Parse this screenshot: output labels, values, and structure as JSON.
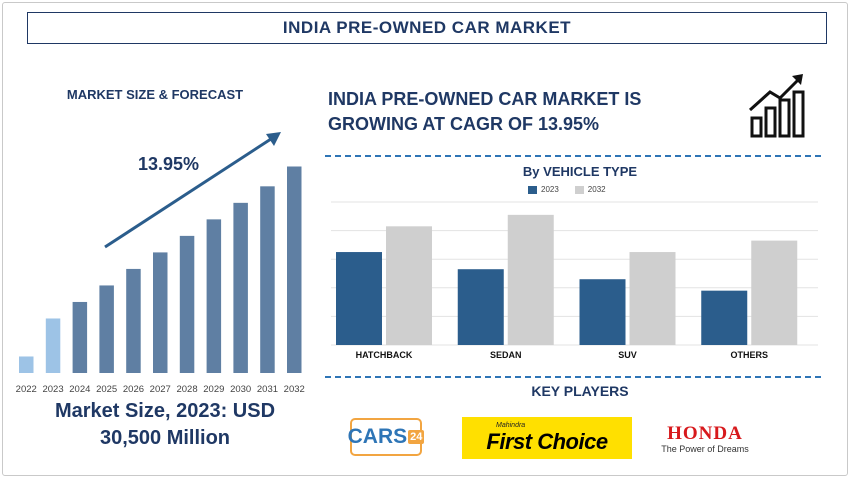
{
  "title": "INDIA PRE-OWNED CAR MARKET",
  "left_heading": "MARKET SIZE & FORECAST",
  "market_size_line1": "Market Size, 2023: USD",
  "market_size_line2": "30,500 Million",
  "growth_line1": "INDIA PRE-OWNED CAR MARKET IS",
  "growth_line2": "GROWING AT CAGR OF 13.95%",
  "key_players_title": "KEY PLAYERS",
  "logos": {
    "cars24_main": "CARS",
    "cars24_num": "24",
    "mahindra_small": "Mahindra",
    "mahindra_big": "First Choice",
    "honda_name": "HONDA",
    "honda_tagline": "The Power of Dreams"
  },
  "icons": {
    "growth": "growth-bar-chart-icon"
  },
  "colors": {
    "navy": "#1f3864",
    "bar_2023": "#2b5d8c",
    "bar_2032": "#cfcfcf",
    "forecast_bar": "#5f7fa3",
    "first_bar": "#9dc3e6"
  },
  "chart_data": [
    {
      "type": "bar",
      "title": "MARKET SIZE & FORECAST",
      "categories": [
        "2022",
        "2023",
        "2024",
        "2025",
        "2026",
        "2027",
        "2028",
        "2029",
        "2030",
        "2031",
        "2032"
      ],
      "values": [
        1,
        3.3,
        4.3,
        5.3,
        6.3,
        7.3,
        8.3,
        9.3,
        10.3,
        11.3,
        12.5
      ],
      "value_unit": "relative",
      "annotation": "13.95%",
      "ylim": [
        0,
        13
      ]
    },
    {
      "type": "bar",
      "title": "By VEHICLE TYPE",
      "categories": [
        "HATCHBACK",
        "SEDAN",
        "SUV",
        "OTHERS"
      ],
      "series": [
        {
          "name": "2023",
          "values": [
            65,
            53,
            46,
            38
          ]
        },
        {
          "name": "2032",
          "values": [
            83,
            91,
            65,
            73
          ]
        }
      ],
      "ylim": [
        0,
        100
      ],
      "grid": true,
      "legend": "top-center"
    }
  ]
}
